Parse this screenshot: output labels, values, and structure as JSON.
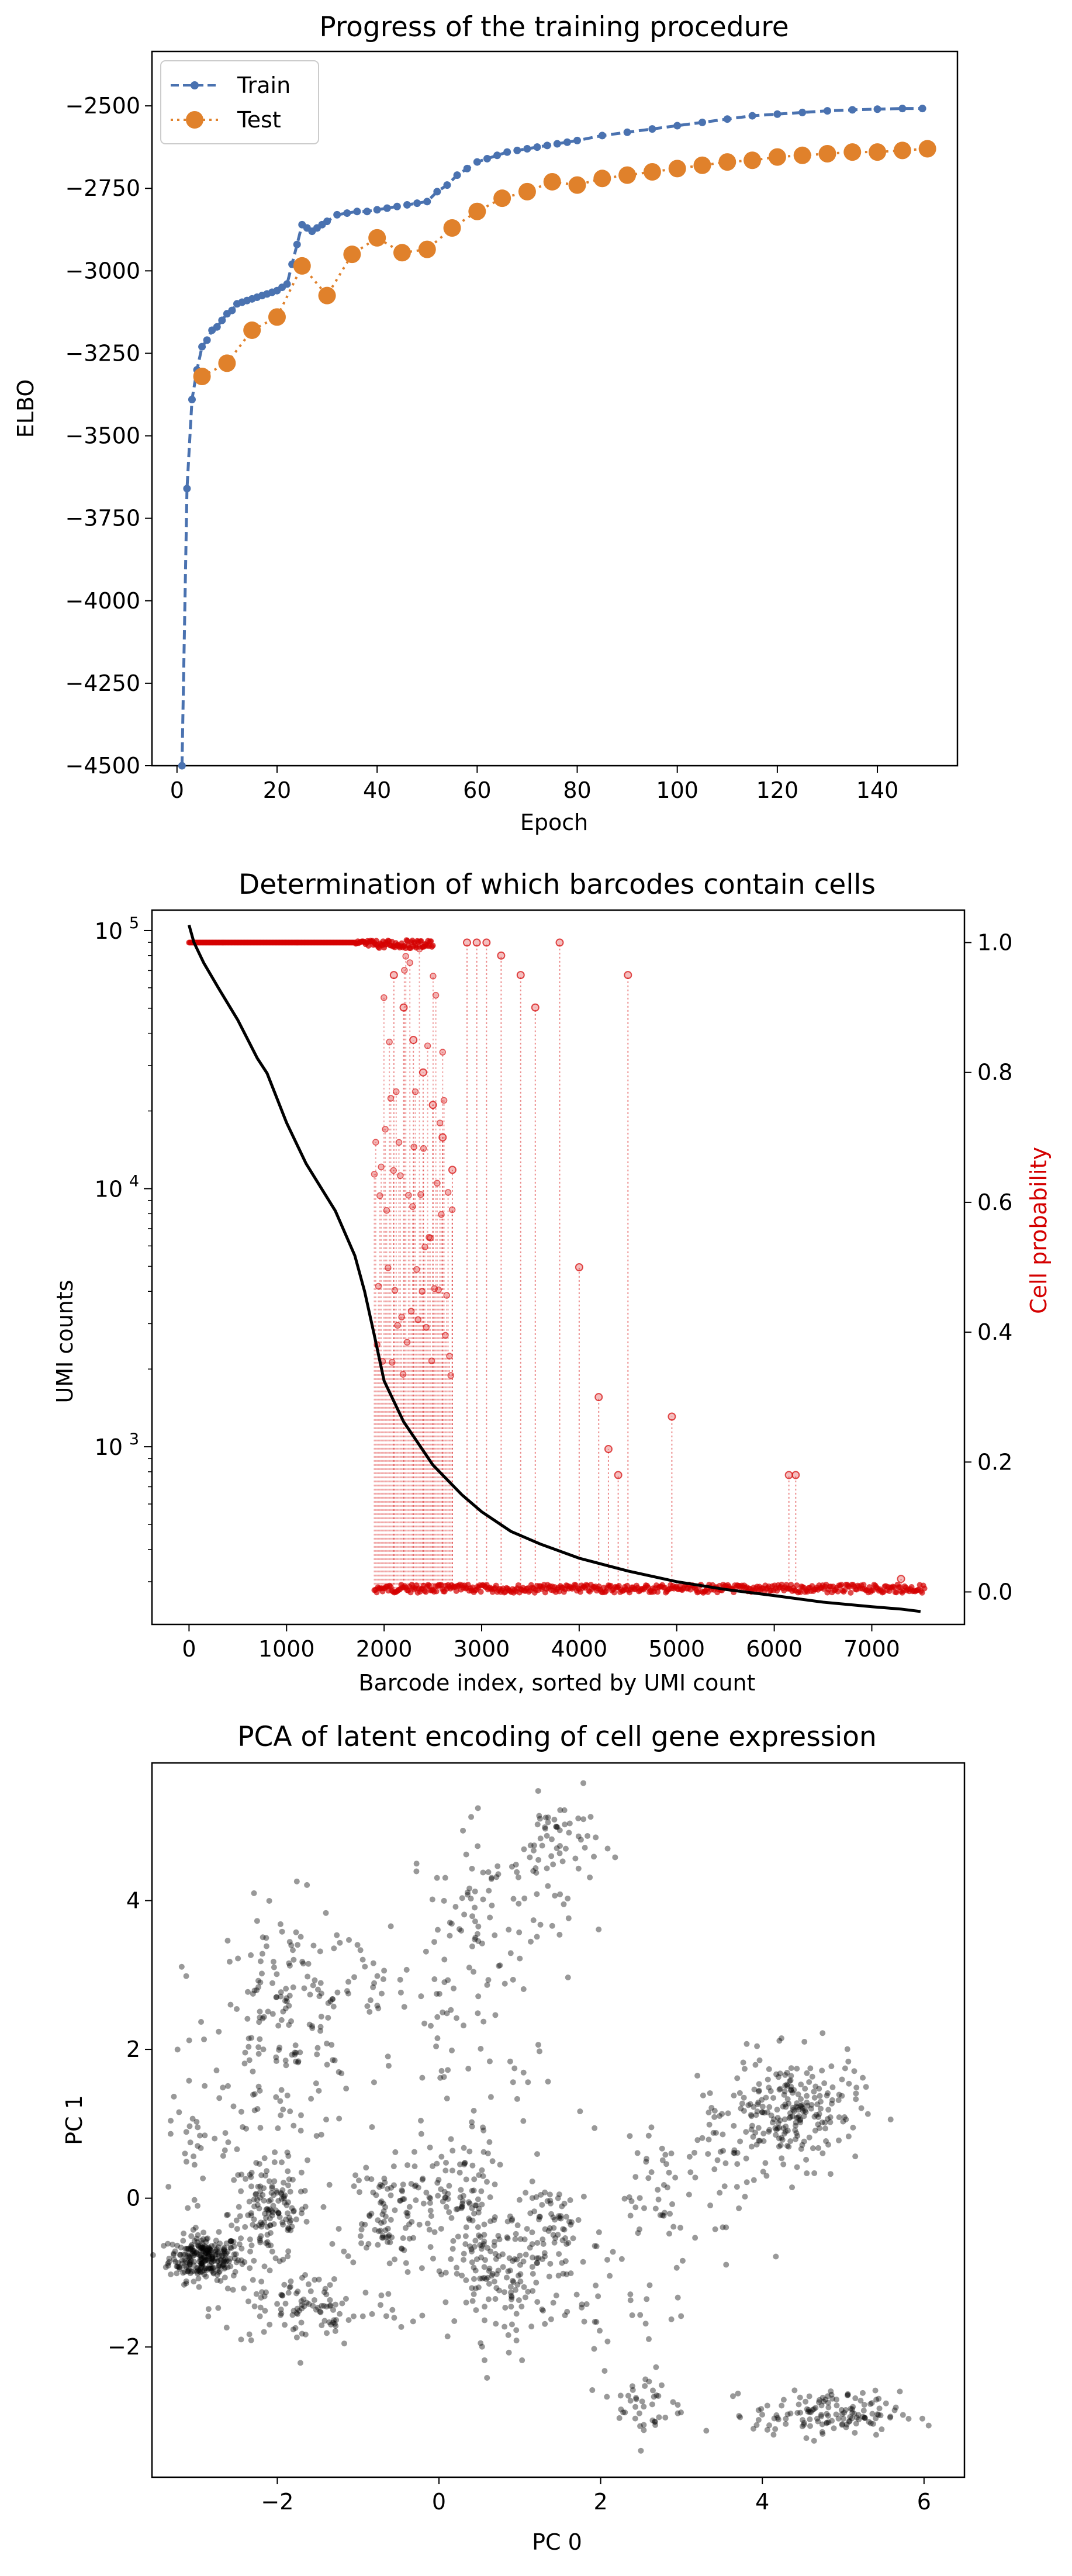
{
  "chart_data": [
    {
      "type": "line",
      "title": "Progress of the training procedure",
      "xlabel": "Epoch",
      "ylabel": "ELBO",
      "xlim": [
        -5,
        156
      ],
      "ylim": [
        -4500,
        -2335
      ],
      "xticks": [
        0,
        20,
        40,
        60,
        80,
        100,
        120,
        140
      ],
      "yticks": [
        -4500,
        -4250,
        -4000,
        -3750,
        -3500,
        -3250,
        -3000,
        -2750,
        -2500
      ],
      "tick_labels_x": [
        "0",
        "20",
        "40",
        "60",
        "80",
        "100",
        "120",
        "140"
      ],
      "tick_labels_y": [
        "−4500",
        "−4250",
        "−4000",
        "−3750",
        "−3500",
        "−3250",
        "−3000",
        "−2750",
        "−2500"
      ],
      "legend_position": "top-left",
      "grid": false,
      "series": [
        {
          "name": "Train",
          "color": "#4a72b0",
          "line_style": "dashed",
          "marker": "small-circle",
          "points": [
            [
              1,
              -4500
            ],
            [
              2,
              -3660
            ],
            [
              3,
              -3390
            ],
            [
              4,
              -3300
            ],
            [
              5,
              -3230
            ],
            [
              6,
              -3210
            ],
            [
              7,
              -3180
            ],
            [
              8,
              -3170
            ],
            [
              9,
              -3150
            ],
            [
              10,
              -3130
            ],
            [
              11,
              -3120
            ],
            [
              12,
              -3100
            ],
            [
              13,
              -3095
            ],
            [
              14,
              -3090
            ],
            [
              15,
              -3085
            ],
            [
              16,
              -3080
            ],
            [
              17,
              -3075
            ],
            [
              18,
              -3070
            ],
            [
              19,
              -3065
            ],
            [
              20,
              -3060
            ],
            [
              21,
              -3050
            ],
            [
              22,
              -3040
            ],
            [
              23,
              -2980
            ],
            [
              24,
              -2920
            ],
            [
              25,
              -2860
            ],
            [
              26,
              -2870
            ],
            [
              27,
              -2880
            ],
            [
              28,
              -2870
            ],
            [
              29,
              -2860
            ],
            [
              30,
              -2850
            ],
            [
              32,
              -2830
            ],
            [
              34,
              -2825
            ],
            [
              36,
              -2820
            ],
            [
              38,
              -2820
            ],
            [
              40,
              -2815
            ],
            [
              42,
              -2810
            ],
            [
              44,
              -2805
            ],
            [
              46,
              -2800
            ],
            [
              48,
              -2795
            ],
            [
              50,
              -2790
            ],
            [
              52,
              -2760
            ],
            [
              54,
              -2740
            ],
            [
              56,
              -2710
            ],
            [
              58,
              -2690
            ],
            [
              60,
              -2670
            ],
            [
              62,
              -2660
            ],
            [
              64,
              -2650
            ],
            [
              66,
              -2640
            ],
            [
              68,
              -2635
            ],
            [
              70,
              -2630
            ],
            [
              72,
              -2625
            ],
            [
              74,
              -2620
            ],
            [
              76,
              -2615
            ],
            [
              78,
              -2610
            ],
            [
              80,
              -2605
            ],
            [
              85,
              -2590
            ],
            [
              90,
              -2580
            ],
            [
              95,
              -2570
            ],
            [
              100,
              -2560
            ],
            [
              105,
              -2550
            ],
            [
              110,
              -2540
            ],
            [
              115,
              -2530
            ],
            [
              120,
              -2525
            ],
            [
              125,
              -2520
            ],
            [
              130,
              -2515
            ],
            [
              135,
              -2512
            ],
            [
              140,
              -2510
            ],
            [
              145,
              -2508
            ],
            [
              149,
              -2508
            ]
          ]
        },
        {
          "name": "Test",
          "color": "#e0812b",
          "line_style": "dotted",
          "marker": "large-circle",
          "points": [
            [
              5,
              -3320
            ],
            [
              10,
              -3280
            ],
            [
              15,
              -3180
            ],
            [
              20,
              -3140
            ],
            [
              25,
              -2985
            ],
            [
              30,
              -3075
            ],
            [
              35,
              -2950
            ],
            [
              40,
              -2900
            ],
            [
              45,
              -2945
            ],
            [
              50,
              -2935
            ],
            [
              55,
              -2870
            ],
            [
              60,
              -2820
            ],
            [
              65,
              -2780
            ],
            [
              70,
              -2760
            ],
            [
              75,
              -2730
            ],
            [
              80,
              -2740
            ],
            [
              85,
              -2720
            ],
            [
              90,
              -2710
            ],
            [
              95,
              -2700
            ],
            [
              100,
              -2690
            ],
            [
              105,
              -2680
            ],
            [
              110,
              -2670
            ],
            [
              115,
              -2665
            ],
            [
              120,
              -2655
            ],
            [
              125,
              -2650
            ],
            [
              130,
              -2645
            ],
            [
              135,
              -2640
            ],
            [
              140,
              -2640
            ],
            [
              145,
              -2635
            ],
            [
              150,
              -2630
            ]
          ]
        }
      ]
    },
    {
      "type": "line",
      "title": "Determination of which barcodes contain cells",
      "xlabel": "Barcode index, sorted by UMI count",
      "ylabel": "UMI counts",
      "ylabel_right": "Cell probability",
      "ylabel_right_color": "#d40000",
      "xlim": [
        -380,
        7950
      ],
      "ylim_log": [
        205,
        120000
      ],
      "ylim_right": [
        -0.05,
        1.05
      ],
      "y_scale": "log",
      "xticks": [
        0,
        1000,
        2000,
        3000,
        4000,
        5000,
        6000,
        7000
      ],
      "tick_labels_x": [
        "0",
        "1000",
        "2000",
        "3000",
        "4000",
        "5000",
        "6000",
        "7000"
      ],
      "yticks_log": [
        1000,
        10000,
        100000
      ],
      "tick_labels_y_base": [
        "10",
        "10",
        "10"
      ],
      "tick_labels_y_exp": [
        "3",
        "4",
        "5"
      ],
      "yticks_right": [
        0.0,
        0.2,
        0.4,
        0.6,
        0.8,
        1.0
      ],
      "tick_labels_y_right": [
        "0.0",
        "0.2",
        "0.4",
        "0.6",
        "0.8",
        "1.0"
      ],
      "series": [
        {
          "name": "",
          "color": "#000000",
          "axis": "left",
          "points": [
            [
              0,
              105000
            ],
            [
              50,
              90000
            ],
            [
              150,
              75000
            ],
            [
              300,
              60000
            ],
            [
              500,
              45000
            ],
            [
              700,
              32000
            ],
            [
              800,
              28000
            ],
            [
              1000,
              18000
            ],
            [
              1200,
              12500
            ],
            [
              1500,
              8200
            ],
            [
              1700,
              5500
            ],
            [
              1800,
              4000
            ],
            [
              1900,
              2700
            ],
            [
              2000,
              1800
            ],
            [
              2200,
              1250
            ],
            [
              2500,
              850
            ],
            [
              2800,
              650
            ],
            [
              3000,
              560
            ],
            [
              3300,
              470
            ],
            [
              3600,
              420
            ],
            [
              4000,
              370
            ],
            [
              4500,
              330
            ],
            [
              5000,
              300
            ],
            [
              5500,
              280
            ],
            [
              6000,
              265
            ],
            [
              6500,
              250
            ],
            [
              7000,
              240
            ],
            [
              7300,
              235
            ],
            [
              7500,
              230
            ]
          ]
        },
        {
          "name": "",
          "color": "#d40000",
          "axis": "right",
          "high_band": [
            0,
            2500,
            1.0
          ],
          "low_band": [
            1900,
            7550,
            0.005
          ],
          "transition_range": [
            1900,
            2700
          ],
          "spikes": [
            [
              2100,
              0.95
            ],
            [
              2200,
              0.9
            ],
            [
              2300,
              0.85
            ],
            [
              2400,
              0.8
            ],
            [
              2500,
              0.75
            ],
            [
              2600,
              0.7
            ],
            [
              2700,
              0.65
            ],
            [
              2850,
              1.0
            ],
            [
              2950,
              1.0
            ],
            [
              3050,
              1.0
            ],
            [
              3200,
              0.98
            ],
            [
              3400,
              0.95
            ],
            [
              3550,
              0.9
            ],
            [
              3800,
              1.0
            ],
            [
              4000,
              0.5
            ],
            [
              4200,
              0.3
            ],
            [
              4300,
              0.22
            ],
            [
              4400,
              0.18
            ],
            [
              4500,
              0.95
            ],
            [
              4950,
              0.27
            ],
            [
              6150,
              0.18
            ],
            [
              6220,
              0.18
            ],
            [
              7300,
              0.02
            ]
          ]
        }
      ]
    },
    {
      "type": "scatter",
      "title": "PCA of latent encoding of cell gene expression",
      "xlabel": "PC 0",
      "ylabel": "PC 1",
      "xlim": [
        -3.55,
        6.5
      ],
      "ylim": [
        -3.75,
        5.85
      ],
      "xticks": [
        -2,
        0,
        2,
        4,
        6
      ],
      "tick_labels_x": [
        "−2",
        "0",
        "2",
        "4",
        "6"
      ],
      "yticks": [
        -2,
        0,
        2,
        4
      ],
      "tick_labels_y": [
        "−2",
        "0",
        "2",
        "4"
      ],
      "point_color": "#000000",
      "point_alpha": 0.4,
      "clusters": [
        {
          "cx": -2.9,
          "cy": -0.8,
          "sx": 0.22,
          "sy": 0.15,
          "n": 260
        },
        {
          "cx": -2.1,
          "cy": -0.2,
          "sx": 0.25,
          "sy": 0.35,
          "n": 150
        },
        {
          "cx": -1.9,
          "cy": 2.3,
          "sx": 0.45,
          "sy": 0.8,
          "n": 160
        },
        {
          "cx": -1.6,
          "cy": -1.5,
          "sx": 0.6,
          "sy": 0.25,
          "n": 110
        },
        {
          "cx": -0.7,
          "cy": -0.2,
          "sx": 0.25,
          "sy": 0.35,
          "n": 90
        },
        {
          "cx": 0.2,
          "cy": 0.0,
          "sx": 0.25,
          "sy": 0.45,
          "n": 90
        },
        {
          "cx": 0.8,
          "cy": -1.0,
          "sx": 0.45,
          "sy": 0.45,
          "n": 170
        },
        {
          "cx": 1.5,
          "cy": -0.4,
          "sx": 0.25,
          "sy": 0.3,
          "n": 60
        },
        {
          "cx": 0.6,
          "cy": 3.8,
          "sx": 0.5,
          "sy": 0.6,
          "n": 100
        },
        {
          "cx": 1.5,
          "cy": 4.8,
          "sx": 0.25,
          "sy": 0.3,
          "n": 50
        },
        {
          "cx": 4.4,
          "cy": 1.2,
          "sx": 0.4,
          "sy": 0.35,
          "n": 220
        },
        {
          "cx": 3.5,
          "cy": 0.5,
          "sx": 0.4,
          "sy": 0.6,
          "n": 60
        },
        {
          "cx": 4.8,
          "cy": -2.9,
          "sx": 0.45,
          "sy": 0.15,
          "n": 140
        },
        {
          "cx": 2.6,
          "cy": -2.8,
          "sx": 0.2,
          "sy": 0.25,
          "n": 40
        },
        {
          "cx": 2.6,
          "cy": 0.2,
          "sx": 0.3,
          "sy": 0.6,
          "n": 40
        },
        {
          "cx": -0.8,
          "cy": 2.8,
          "sx": 0.6,
          "sy": 0.4,
          "n": 40
        },
        {
          "cx": 0.5,
          "cy": 1.5,
          "sx": 0.8,
          "sy": 0.8,
          "n": 50
        },
        {
          "cx": 2.3,
          "cy": -1.5,
          "sx": 0.4,
          "sy": 0.5,
          "n": 25
        },
        {
          "cx": -3.0,
          "cy": 1.0,
          "sx": 0.25,
          "sy": 0.8,
          "n": 40
        }
      ]
    }
  ]
}
